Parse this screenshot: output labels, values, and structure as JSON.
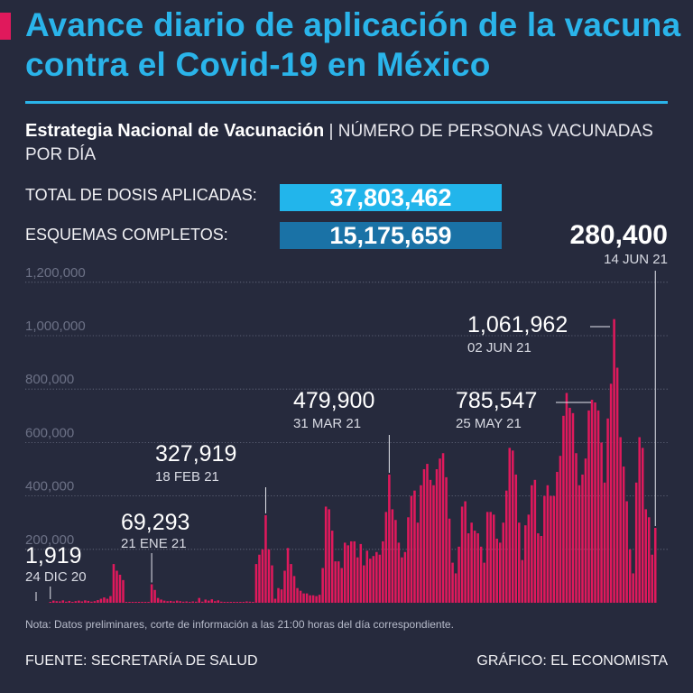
{
  "title": "Avance diario de aplicación de la vacuna contra el Covid-19 en México",
  "subtitle": {
    "strong": "Estrategia Nacional de Vacunación",
    "separator": " | ",
    "rest": "NÚMERO DE PERSONAS VACUNADAS POR DÍA"
  },
  "stats": {
    "total_label": "TOTAL DE DOSIS APLICADAS:",
    "total_value": "37,803,462",
    "total_color": "#22b5eb",
    "complete_label": "ESQUEMAS COMPLETOS:",
    "complete_value": "15,175,659",
    "complete_color": "#1a72a6"
  },
  "colors": {
    "background": "#262a3d",
    "title": "#2ab4ea",
    "accent": "#e0195c",
    "bars": "#e0195c",
    "grid": "#6a6f84",
    "axis_text": "#6c7186"
  },
  "chart_data": {
    "type": "bar",
    "ylim": [
      0,
      1250000
    ],
    "yticks": [
      0,
      200000,
      400000,
      600000,
      800000,
      1000000,
      1200000
    ],
    "ytick_labels": [
      "",
      "200,000",
      "400,000",
      "600,000",
      "800,000",
      "1,000,000",
      "1,200,000"
    ],
    "grid": true,
    "gridline_style": "dotted",
    "series_color": "#e0195c",
    "values": [
      1919,
      8000,
      6000,
      5000,
      9000,
      4000,
      7000,
      3000,
      6000,
      8000,
      5000,
      9000,
      7000,
      4000,
      6000,
      10000,
      15000,
      20000,
      15000,
      25000,
      145000,
      120000,
      105000,
      85000,
      3000,
      2000,
      3000,
      2000,
      3000,
      2000,
      3000,
      2000,
      69293,
      48000,
      18000,
      12000,
      8000,
      6000,
      7000,
      5000,
      8000,
      6000,
      4000,
      5000,
      3000,
      5000,
      4000,
      18000,
      4000,
      12000,
      8000,
      13000,
      6000,
      9000,
      4000,
      3000,
      2000,
      3000,
      2000,
      1000,
      2000,
      1000,
      5000,
      4000,
      2000,
      145000,
      180000,
      200000,
      327919,
      200000,
      140000,
      15000,
      55000,
      50000,
      120000,
      205000,
      145000,
      100000,
      55000,
      45000,
      35000,
      35000,
      28000,
      28000,
      25000,
      30000,
      130000,
      360000,
      350000,
      270000,
      155000,
      155000,
      130000,
      225000,
      215000,
      230000,
      230000,
      170000,
      220000,
      140000,
      195000,
      165000,
      175000,
      190000,
      180000,
      230000,
      340000,
      479900,
      350000,
      310000,
      225000,
      170000,
      190000,
      320000,
      400000,
      420000,
      300000,
      440000,
      500000,
      520000,
      460000,
      440000,
      500000,
      540000,
      560000,
      470000,
      315000,
      150000,
      110000,
      210000,
      360000,
      380000,
      260000,
      300000,
      270000,
      260000,
      210000,
      150000,
      340000,
      340000,
      330000,
      240000,
      225000,
      300000,
      420000,
      580000,
      570000,
      480000,
      300000,
      160000,
      290000,
      330000,
      440000,
      460000,
      260000,
      250000,
      400000,
      440000,
      400000,
      400000,
      490000,
      550000,
      700000,
      785547,
      730000,
      710000,
      560000,
      440000,
      480000,
      540000,
      720000,
      760000,
      750000,
      720000,
      600000,
      450000,
      690000,
      820000,
      1061962,
      880000,
      620000,
      510000,
      380000,
      200000,
      110000,
      450000,
      620000,
      580000,
      350000,
      320000,
      180000,
      280400
    ],
    "annotations": [
      {
        "value": "1,919",
        "date": "24 DIC 20",
        "index": 0
      },
      {
        "value": "69,293",
        "date": "21 ENE 21",
        "index": 32
      },
      {
        "value": "327,919",
        "date": "18 FEB 21",
        "index": 68
      },
      {
        "value": "479,900",
        "date": "31 MAR 21",
        "index": 107
      },
      {
        "value": "785,547",
        "date": "25 MAY 21",
        "index": 163
      },
      {
        "value": "1,061,962",
        "date": "02 JUN 21",
        "index": 178
      },
      {
        "value": "280,400",
        "date": "14 JUN 21",
        "index": 191
      }
    ]
  },
  "note": "Nota: Datos preliminares, corte de información a las 21:00 horas del día correspondiente.",
  "footer": {
    "source": "FUENTE: SECRETARÍA DE SALUD",
    "credit": "GRÁFICO: EL ECONOMISTA"
  }
}
